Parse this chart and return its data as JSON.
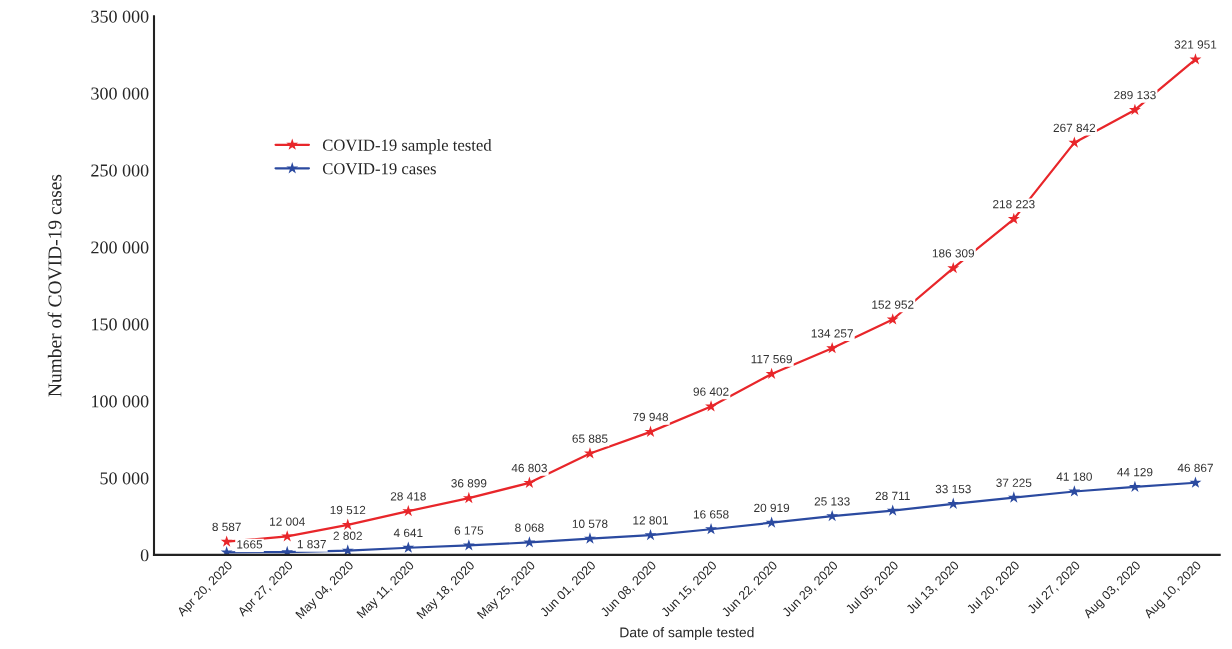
{
  "chart_data": {
    "type": "line",
    "xlabel": "Date of sample tested",
    "ylabel": "Number of COVID-19 cases",
    "categories": [
      "Apr 20, 2020",
      "Apr 27, 2020",
      "May 04, 2020",
      "May 11, 2020",
      "May 18, 2020",
      "May 25, 2020",
      "Jun 01, 2020",
      "Jun 08, 2020",
      "Jun 15, 2020",
      "Jun 22, 2020",
      "Jun 29, 2020",
      "Jul 05, 2020",
      "Jul 13, 2020",
      "Jul 20, 2020",
      "Jul 27, 2020",
      "Aug 03, 2020",
      "Aug 10, 2020"
    ],
    "series": [
      {
        "name": "COVID-19 sample tested",
        "color": "#e8262a",
        "values": [
          8587,
          12004,
          19512,
          28418,
          36899,
          46803,
          65885,
          79948,
          96402,
          117569,
          134257,
          152952,
          186309,
          218223,
          267842,
          289133,
          321951
        ],
        "value_labels": [
          "8 587",
          "12 004",
          "19 512",
          "28 418",
          "36 899",
          "46 803",
          "65 885",
          "79 948",
          "96 402",
          "117 569",
          "134 257",
          "152 952",
          "186 309",
          "218 223",
          "267 842",
          "289 133",
          "321 951"
        ]
      },
      {
        "name": "COVID-19 cases",
        "color": "#2b4aa0",
        "values": [
          1665,
          1837,
          2802,
          4641,
          6175,
          8068,
          10578,
          12801,
          16658,
          20919,
          25133,
          28711,
          33153,
          37225,
          41180,
          44129,
          46867
        ],
        "value_labels": [
          "1665",
          "1 837",
          "2 802",
          "4 641",
          "6 175",
          "8 068",
          "10 578",
          "12 801",
          "16 658",
          "20 919",
          "25 133",
          "28 711",
          "33 153",
          "37 225",
          "41 180",
          "44 129",
          "46 867"
        ]
      }
    ],
    "ylim": [
      0,
      350000
    ],
    "yticks": [
      {
        "value": 0,
        "label": "0"
      },
      {
        "value": 50000,
        "label": "50 000"
      },
      {
        "value": 100000,
        "label": "100 000"
      },
      {
        "value": 150000,
        "label": "150 000"
      },
      {
        "value": 200000,
        "label": "200 000"
      },
      {
        "value": 250000,
        "label": "250 000"
      },
      {
        "value": 300000,
        "label": "300 000"
      },
      {
        "value": 350000,
        "label": "350 000"
      }
    ],
    "marker": "star",
    "line_style": "solid",
    "legend": "top left",
    "grid": false
  }
}
